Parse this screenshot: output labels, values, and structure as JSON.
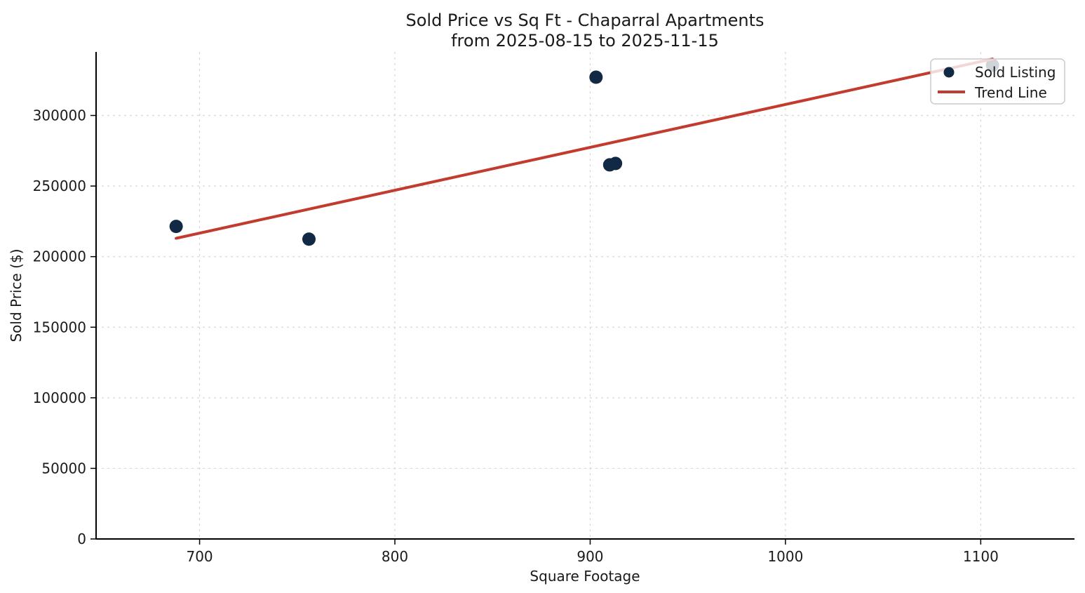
{
  "page": {
    "background": "#ffffff"
  },
  "chart_data": {
    "type": "scatter",
    "title_line1": "Sold Price vs Sq Ft - Chaparral Apartments",
    "title_line2": "from 2025-08-15 to 2025-11-15",
    "xlabel": "Square Footage",
    "ylabel": "Sold Price ($)",
    "xlim": [
      647,
      1148
    ],
    "ylim": [
      0,
      345000
    ],
    "x_ticks": [
      700,
      800,
      900,
      1000,
      1100
    ],
    "y_ticks": [
      0,
      50000,
      100000,
      150000,
      200000,
      250000,
      300000
    ],
    "grid": "dashed",
    "legend_position": "top-right",
    "series": [
      {
        "name": "Sold Listing",
        "kind": "scatter",
        "color": "#112944",
        "marker_radius": 9.5,
        "points": [
          {
            "sqft": 688,
            "price": 221400
          },
          {
            "sqft": 756,
            "price": 212400
          },
          {
            "sqft": 903,
            "price": 327100
          },
          {
            "sqft": 910,
            "price": 265000
          },
          {
            "sqft": 913,
            "price": 266000
          },
          {
            "sqft": 1106,
            "price": 335600
          }
        ]
      },
      {
        "name": "Trend Line",
        "kind": "line",
        "color": "#c23b2e",
        "line_width": 4,
        "points": [
          {
            "sqft": 688,
            "price": 213000
          },
          {
            "sqft": 1106,
            "price": 340000
          }
        ]
      }
    ],
    "legend": [
      {
        "label": "Sold Listing",
        "marker": "dot"
      },
      {
        "label": "Trend Line",
        "marker": "line"
      }
    ]
  },
  "style_colors": {
    "point": "#112944",
    "trend": "#c23b2e",
    "grid": "#d6d6d6",
    "spine": "#000000",
    "legend_border": "#cccccc",
    "legend_fill": "rgba(255,255,255,0.8)"
  }
}
